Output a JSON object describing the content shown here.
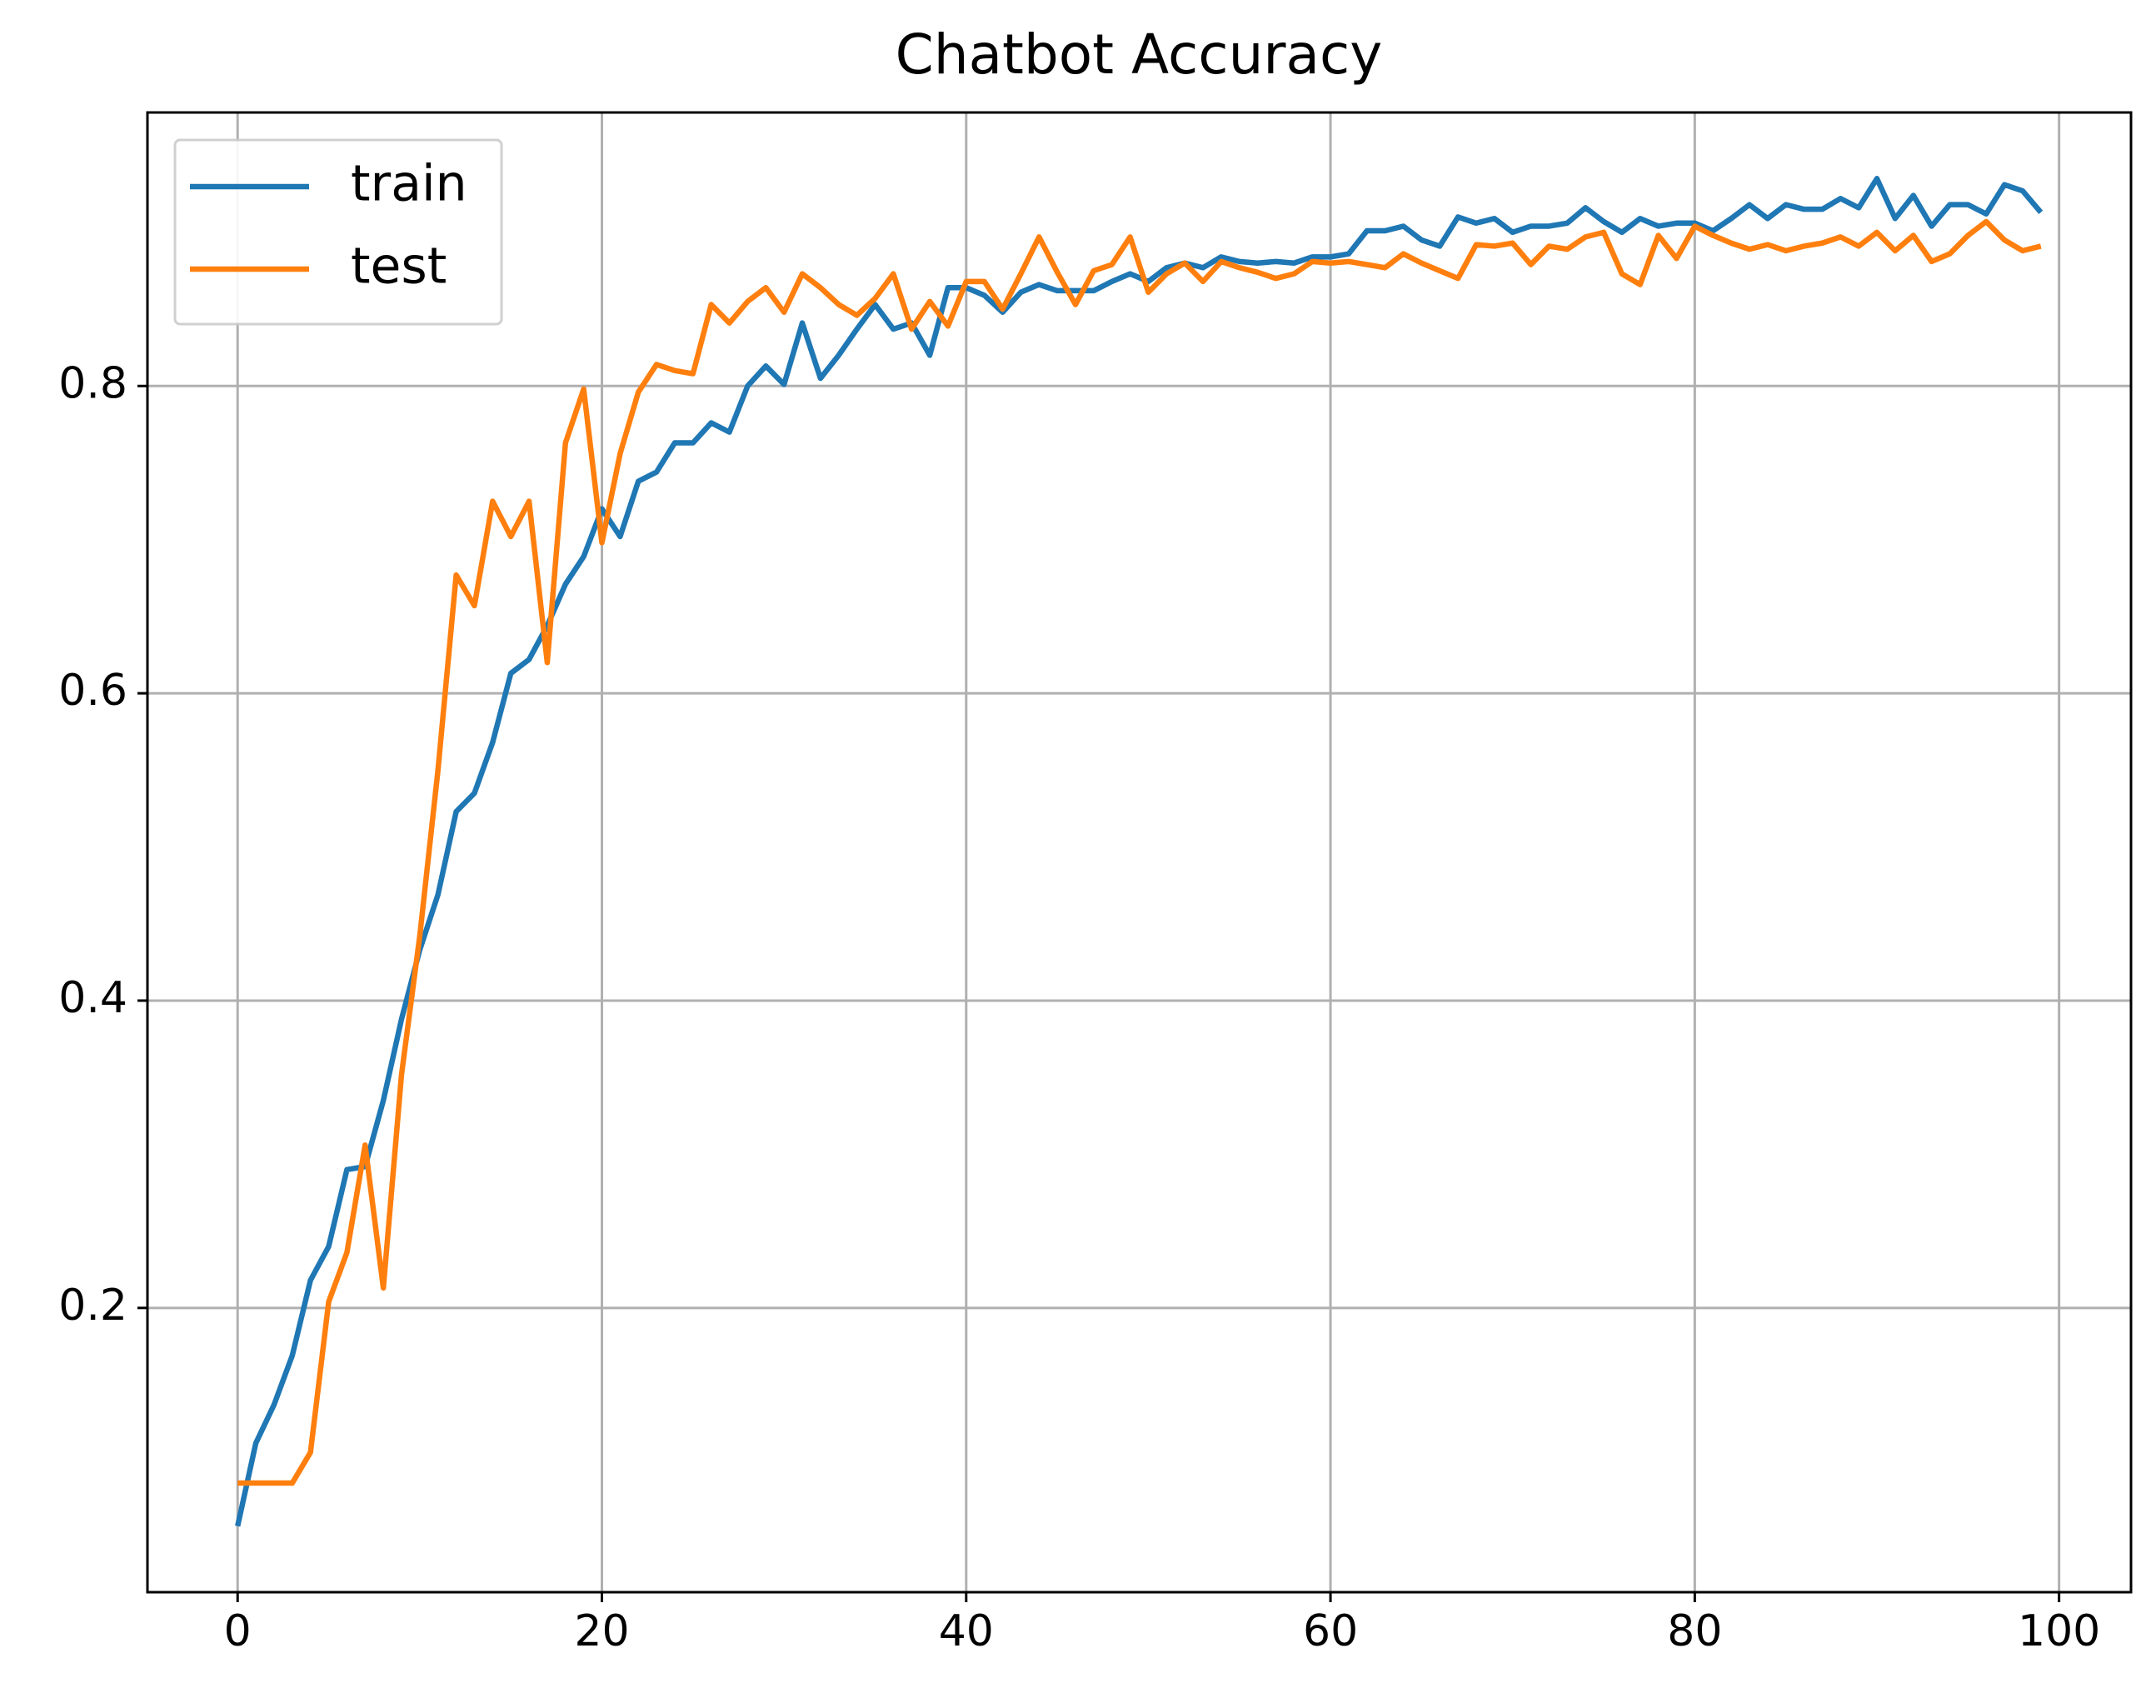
{
  "chart_data": {
    "type": "line",
    "title": "Chatbot Accuracy",
    "x": [
      0,
      1,
      2,
      3,
      4,
      5,
      6,
      7,
      8,
      9,
      10,
      11,
      12,
      13,
      14,
      15,
      16,
      17,
      18,
      19,
      20,
      21,
      22,
      23,
      24,
      25,
      26,
      27,
      28,
      29,
      30,
      31,
      32,
      33,
      34,
      35,
      36,
      37,
      38,
      39,
      40,
      41,
      42,
      43,
      44,
      45,
      46,
      47,
      48,
      49,
      50,
      51,
      52,
      53,
      54,
      55,
      56,
      57,
      58,
      59,
      60,
      61,
      62,
      63,
      64,
      65,
      66,
      67,
      68,
      69,
      70,
      71,
      72,
      73,
      74,
      75,
      76,
      77,
      78,
      79,
      80,
      81,
      82,
      83,
      84,
      85,
      86,
      87,
      88,
      89,
      90,
      91,
      92,
      93,
      94,
      95,
      96,
      97,
      98,
      99
    ],
    "series": [
      {
        "name": "train",
        "color": "#1f77b4",
        "values": [
          0.058,
          0.112,
          0.137,
          0.169,
          0.218,
          0.24,
          0.29,
          0.292,
          0.335,
          0.388,
          0.433,
          0.469,
          0.523,
          0.535,
          0.568,
          0.613,
          0.622,
          0.644,
          0.671,
          0.689,
          0.72,
          0.702,
          0.738,
          0.744,
          0.763,
          0.763,
          0.776,
          0.77,
          0.8,
          0.813,
          0.801,
          0.841,
          0.805,
          0.82,
          0.837,
          0.853,
          0.837,
          0.841,
          0.82,
          0.864,
          0.864,
          0.859,
          0.848,
          0.861,
          0.866,
          0.862,
          0.862,
          0.862,
          0.868,
          0.873,
          0.868,
          0.877,
          0.88,
          0.877,
          0.884,
          0.881,
          0.88,
          0.881,
          0.88,
          0.884,
          0.884,
          0.886,
          0.901,
          0.901,
          0.904,
          0.895,
          0.891,
          0.91,
          0.906,
          0.909,
          0.9,
          0.904,
          0.904,
          0.906,
          0.916,
          0.907,
          0.9,
          0.909,
          0.904,
          0.906,
          0.906,
          0.901,
          0.909,
          0.918,
          0.909,
          0.918,
          0.915,
          0.915,
          0.922,
          0.916,
          0.935,
          0.909,
          0.924,
          0.904,
          0.918,
          0.918,
          0.912,
          0.931,
          0.927,
          0.913
        ]
      },
      {
        "name": "test",
        "color": "#ff7f0e",
        "values": [
          0.086,
          0.086,
          0.086,
          0.086,
          0.106,
          0.204,
          0.236,
          0.306,
          0.213,
          0.352,
          0.442,
          0.55,
          0.677,
          0.657,
          0.725,
          0.702,
          0.725,
          0.62,
          0.763,
          0.798,
          0.698,
          0.756,
          0.796,
          0.814,
          0.81,
          0.808,
          0.853,
          0.841,
          0.855,
          0.864,
          0.848,
          0.873,
          0.864,
          0.853,
          0.846,
          0.857,
          0.873,
          0.837,
          0.855,
          0.839,
          0.868,
          0.868,
          0.85,
          0.873,
          0.897,
          0.874,
          0.853,
          0.875,
          0.879,
          0.897,
          0.861,
          0.873,
          0.88,
          0.868,
          0.881,
          0.877,
          0.874,
          0.87,
          0.873,
          0.881,
          0.88,
          0.881,
          0.879,
          0.877,
          0.886,
          0.88,
          0.875,
          0.87,
          0.892,
          0.891,
          0.893,
          0.879,
          0.891,
          0.889,
          0.897,
          0.9,
          0.873,
          0.866,
          0.898,
          0.883,
          0.904,
          0.898,
          0.893,
          0.889,
          0.892,
          0.888,
          0.891,
          0.893,
          0.897,
          0.891,
          0.9,
          0.888,
          0.898,
          0.881,
          0.886,
          0.898,
          0.907,
          0.895,
          0.888,
          0.891
        ]
      }
    ],
    "xlim": [
      -4.95,
      103.95
    ],
    "ylim": [
      0.015,
      0.978
    ],
    "xticks": [
      0,
      20,
      40,
      60,
      80,
      100
    ],
    "yticks": [
      0.2,
      0.4,
      0.6,
      0.8
    ],
    "grid": true,
    "legend": "upper left"
  }
}
